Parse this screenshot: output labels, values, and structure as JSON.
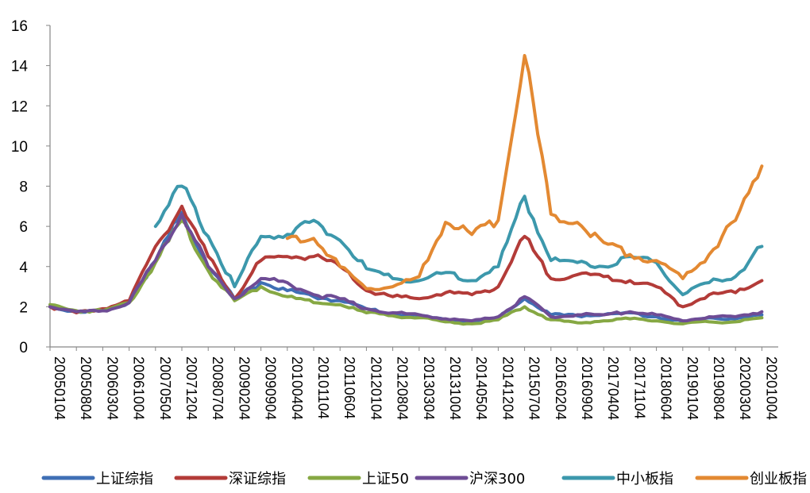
{
  "chart_data": {
    "type": "line",
    "title": "",
    "xlabel": "",
    "ylabel": "",
    "ylim": [
      0,
      16
    ],
    "yticks": [
      0,
      2,
      4,
      6,
      8,
      10,
      12,
      14,
      16
    ],
    "grid": false,
    "legend_position": "bottom",
    "x": [
      "20050104",
      "20050804",
      "20060304",
      "20061004",
      "20070504",
      "20071204",
      "20080704",
      "20090204",
      "20090904",
      "20100404",
      "20101104",
      "20110604",
      "20120104",
      "20120804",
      "20130304",
      "20131004",
      "20140504",
      "20141204",
      "20150704",
      "20160204",
      "20160904",
      "20170404",
      "20171104",
      "20180604",
      "20190104",
      "20190804",
      "20200304",
      "20201004"
    ],
    "series": [
      {
        "name": "上证综指",
        "color": "#3f6fb5",
        "values": [
          2.0,
          1.75,
          1.8,
          2.2,
          4.3,
          6.7,
          4.0,
          2.4,
          3.2,
          2.8,
          2.5,
          2.3,
          1.9,
          1.65,
          1.55,
          1.35,
          1.25,
          1.45,
          2.4,
          1.6,
          1.55,
          1.6,
          1.7,
          1.5,
          1.25,
          1.45,
          1.4,
          1.6
        ]
      },
      {
        "name": "深证综指",
        "color": "#b33b38",
        "values": [
          2.0,
          1.7,
          1.9,
          2.3,
          5.0,
          7.0,
          4.5,
          2.4,
          4.3,
          4.5,
          4.5,
          4.0,
          2.8,
          2.5,
          2.4,
          2.7,
          2.6,
          3.0,
          5.5,
          3.4,
          3.6,
          3.5,
          3.3,
          3.0,
          2.0,
          2.6,
          2.7,
          3.3
        ]
      },
      {
        "name": "上证50",
        "color": "#86a843",
        "values": [
          2.1,
          1.8,
          1.8,
          2.2,
          4.2,
          6.3,
          3.8,
          2.3,
          3.0,
          2.5,
          2.2,
          2.1,
          1.7,
          1.55,
          1.45,
          1.25,
          1.15,
          1.35,
          2.0,
          1.35,
          1.2,
          1.3,
          1.4,
          1.3,
          1.15,
          1.25,
          1.25,
          1.45
        ]
      },
      {
        "name": "沪深300",
        "color": "#6e4c95",
        "values": [
          2.0,
          1.75,
          1.8,
          2.2,
          4.3,
          6.6,
          4.0,
          2.4,
          3.4,
          3.2,
          2.6,
          2.4,
          1.9,
          1.7,
          1.6,
          1.4,
          1.3,
          1.5,
          2.5,
          1.5,
          1.6,
          1.6,
          1.75,
          1.6,
          1.3,
          1.5,
          1.5,
          1.75
        ]
      },
      {
        "name": "中小板指",
        "color": "#3c98ac",
        "values": [
          null,
          null,
          null,
          null,
          6.0,
          8.0,
          5.5,
          3.0,
          5.5,
          5.6,
          6.3,
          5.3,
          3.9,
          3.4,
          3.3,
          3.7,
          3.3,
          4.0,
          7.5,
          4.3,
          4.2,
          4.0,
          4.5,
          4.2,
          2.6,
          3.2,
          3.5,
          5.0
        ]
      },
      {
        "name": "创业板指",
        "color": "#e38932",
        "values": [
          null,
          null,
          null,
          null,
          null,
          null,
          null,
          null,
          null,
          5.4,
          5.4,
          4.0,
          2.9,
          3.0,
          3.5,
          6.2,
          5.6,
          6.3,
          14.5,
          6.6,
          6.2,
          5.2,
          4.6,
          4.3,
          3.4,
          4.6,
          6.3,
          9.0
        ]
      }
    ]
  }
}
